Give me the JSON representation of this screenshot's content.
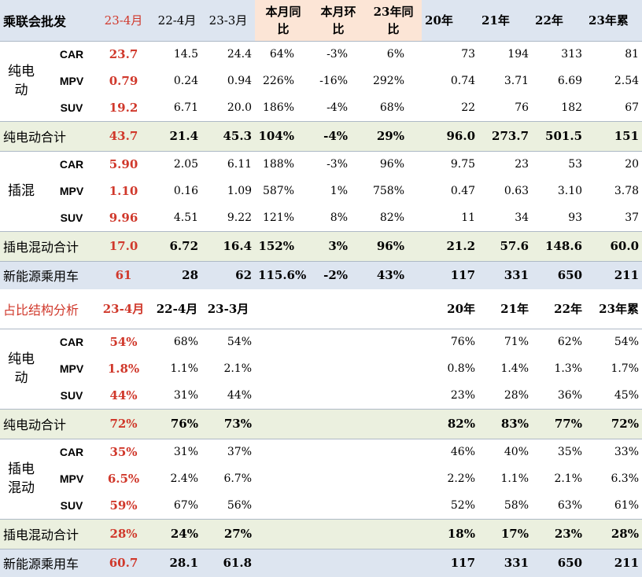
{
  "section1": {
    "header": {
      "title": "乘联会批发",
      "cols": [
        "23-4月",
        "22-4月",
        "23-3月",
        "本月同比",
        "本月环比",
        "23年同比",
        "20年",
        "21年",
        "22年",
        "23年累"
      ],
      "pink_lines": [
        [
          "本月同",
          "比"
        ],
        [
          "本月环",
          "比"
        ],
        [
          "23年同",
          "比"
        ]
      ]
    },
    "groups": [
      {
        "label_lines": [
          "纯电",
          "动"
        ],
        "rows": [
          {
            "name": "CAR",
            "v": [
              "23.7",
              "14.5",
              "24.4",
              "64%",
              "-3%",
              "6%",
              "73",
              "194",
              "313",
              "81"
            ]
          },
          {
            "name": "MPV",
            "v": [
              "0.79",
              "0.24",
              "0.94",
              "226%",
              "-16%",
              "292%",
              "0.74",
              "3.71",
              "6.69",
              "2.54"
            ]
          },
          {
            "name": "SUV",
            "v": [
              "19.2",
              "6.71",
              "20.0",
              "186%",
              "-4%",
              "68%",
              "22",
              "76",
              "182",
              "67"
            ]
          }
        ],
        "subtotal": {
          "label": "纯电动合计",
          "v": [
            "43.7",
            "21.4",
            "45.3",
            "104%",
            "-4%",
            "29%",
            "96.0",
            "273.7",
            "501.5",
            "151"
          ]
        }
      },
      {
        "label_lines": [
          "插混"
        ],
        "rows": [
          {
            "name": "CAR",
            "v": [
              "5.90",
              "2.05",
              "6.11",
              "188%",
              "-3%",
              "96%",
              "9.75",
              "23",
              "53",
              "20"
            ]
          },
          {
            "name": "MPV",
            "v": [
              "1.10",
              "0.16",
              "1.09",
              "587%",
              "1%",
              "758%",
              "0.47",
              "0.63",
              "3.10",
              "3.78"
            ]
          },
          {
            "name": "SUV",
            "v": [
              "9.96",
              "4.51",
              "9.22",
              "121%",
              "8%",
              "82%",
              "11",
              "34",
              "93",
              "37"
            ]
          }
        ],
        "subtotal": {
          "label": "插电混动合计",
          "v": [
            "17.0",
            "6.72",
            "16.4",
            "152%",
            "3%",
            "96%",
            "21.2",
            "57.6",
            "148.6",
            "60.0"
          ]
        }
      }
    ],
    "total": {
      "label": "新能源乘用车",
      "v": [
        "61",
        "28",
        "62",
        "115.6%",
        "-2%",
        "43%",
        "117",
        "331",
        "650",
        "211"
      ]
    }
  },
  "section2": {
    "header": {
      "title": "占比结构分析",
      "cols": [
        "23-4月",
        "22-4月",
        "23-3月",
        "20年",
        "21年",
        "22年",
        "23年累"
      ]
    },
    "groups": [
      {
        "label_lines": [
          "纯电",
          "动"
        ],
        "rows": [
          {
            "name": "CAR",
            "v": [
              "54%",
              "68%",
              "54%",
              "76%",
              "71%",
              "62%",
              "54%"
            ]
          },
          {
            "name": "MPV",
            "v": [
              "1.8%",
              "1.1%",
              "2.1%",
              "0.8%",
              "1.4%",
              "1.3%",
              "1.7%"
            ]
          },
          {
            "name": "SUV",
            "v": [
              "44%",
              "31%",
              "44%",
              "23%",
              "28%",
              "36%",
              "45%"
            ]
          }
        ],
        "subtotal": {
          "label": "纯电动合计",
          "v": [
            "72%",
            "76%",
            "73%",
            "82%",
            "83%",
            "77%",
            "72%"
          ]
        }
      },
      {
        "label_lines": [
          "插电",
          "混动"
        ],
        "rows": [
          {
            "name": "CAR",
            "v": [
              "35%",
              "31%",
              "37%",
              "46%",
              "40%",
              "35%",
              "33%"
            ]
          },
          {
            "name": "MPV",
            "v": [
              "6.5%",
              "2.4%",
              "6.7%",
              "2.2%",
              "1.1%",
              "2.1%",
              "6.3%"
            ]
          },
          {
            "name": "SUV",
            "v": [
              "59%",
              "67%",
              "56%",
              "52%",
              "58%",
              "63%",
              "61%"
            ]
          }
        ],
        "subtotal": {
          "label": "插电混动合计",
          "v": [
            "28%",
            "24%",
            "27%",
            "18%",
            "17%",
            "23%",
            "28%"
          ]
        }
      }
    ],
    "total": {
      "label": "新能源乘用车",
      "v": [
        "60.7",
        "28.1",
        "61.8",
        "117",
        "331",
        "650",
        "211"
      ]
    }
  }
}
